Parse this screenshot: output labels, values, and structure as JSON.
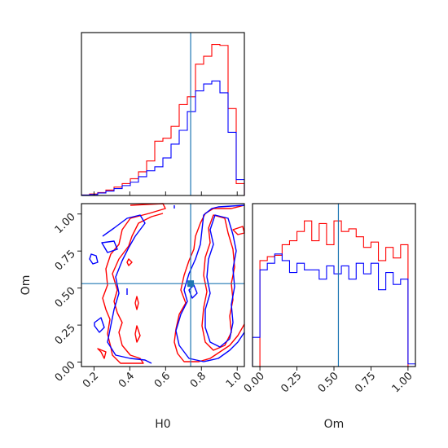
{
  "chart_data": {
    "type": "corner",
    "parameters": [
      "H0",
      "Om"
    ],
    "truth": {
      "H0": 0.74,
      "Om": 0.53,
      "color": "#1f77b4"
    },
    "series_colors": {
      "red_series": "#ff0000",
      "blue_series": "#0000ff"
    },
    "panels": [
      {
        "id": "H0-marginal",
        "type": "step-histogram",
        "xlim": [
          0.13,
          1.04
        ],
        "bin_edges": [
          0.13,
          0.1755,
          0.221,
          0.2665,
          0.312,
          0.3575,
          0.403,
          0.4485,
          0.494,
          0.5395,
          0.585,
          0.6305,
          0.676,
          0.7215,
          0.767,
          0.8125,
          0.858,
          0.9035,
          0.949,
          0.9945,
          1.04
        ],
        "series": [
          {
            "name": "",
            "color": "#ff0000",
            "values": [
              0.5,
              1.5,
              3.0,
              5.5,
              8.5,
              12.0,
              17.0,
              24.0,
              35.0,
              55.0,
              58.0,
              70.0,
              92.0,
              100.0,
              133.0,
              141.0,
              153.0,
              152.0,
              88.0,
              12.0
            ]
          },
          {
            "name": "",
            "color": "#0000ff",
            "values": [
              0.5,
              1.0,
              2.5,
              4.5,
              7.0,
              10.0,
              13.5,
              19.0,
              25.0,
              29.0,
              38.0,
              52.0,
              66.0,
              85.0,
              106.0,
              113.0,
              116.0,
              104.0,
              64.0,
              16.0
            ]
          }
        ]
      },
      {
        "id": "Om-marginal",
        "type": "step-histogram",
        "xlim": [
          -0.05,
          1.05
        ],
        "x_ticks": [
          "0.00",
          "0.25",
          "0.50",
          "0.75",
          "1.00"
        ],
        "x_tick_values": [
          0,
          0.25,
          0.5,
          0.75,
          1.0
        ],
        "xlabel": "Om",
        "series": [
          {
            "name": "",
            "color": "#ff0000",
            "values": [
              0,
              80,
              83,
              84,
              92,
              95,
              102,
              110,
              95,
              108,
              92,
              110,
              102,
              104,
              98,
              90,
              94,
              80,
              90,
              82,
              92,
              0
            ]
          },
          {
            "name": "",
            "color": "#0000ff",
            "values": [
              22,
              73,
              78,
              85,
              80,
              71,
              78,
              73,
              73,
              66,
              76,
              70,
              76,
              66,
              78,
              70,
              78,
              58,
              71,
              62,
              66,
              2
            ]
          }
        ]
      },
      {
        "id": "H0-Om-joint",
        "type": "contour",
        "xlim": [
          0.13,
          1.04
        ],
        "ylim": [
          -0.03,
          1.07
        ],
        "x_ticks": [
          "0.2",
          "0.4",
          "0.6",
          "0.8",
          "1.0"
        ],
        "x_tick_values": [
          0.2,
          0.4,
          0.6,
          0.8,
          1.0
        ],
        "y_ticks": [
          "0.00",
          "0.25",
          "0.50",
          "0.75",
          "1.00"
        ],
        "y_tick_values": [
          0,
          0.25,
          0.5,
          0.75,
          1.0
        ],
        "xlabel": "H0",
        "ylabel": "Om"
      }
    ]
  }
}
